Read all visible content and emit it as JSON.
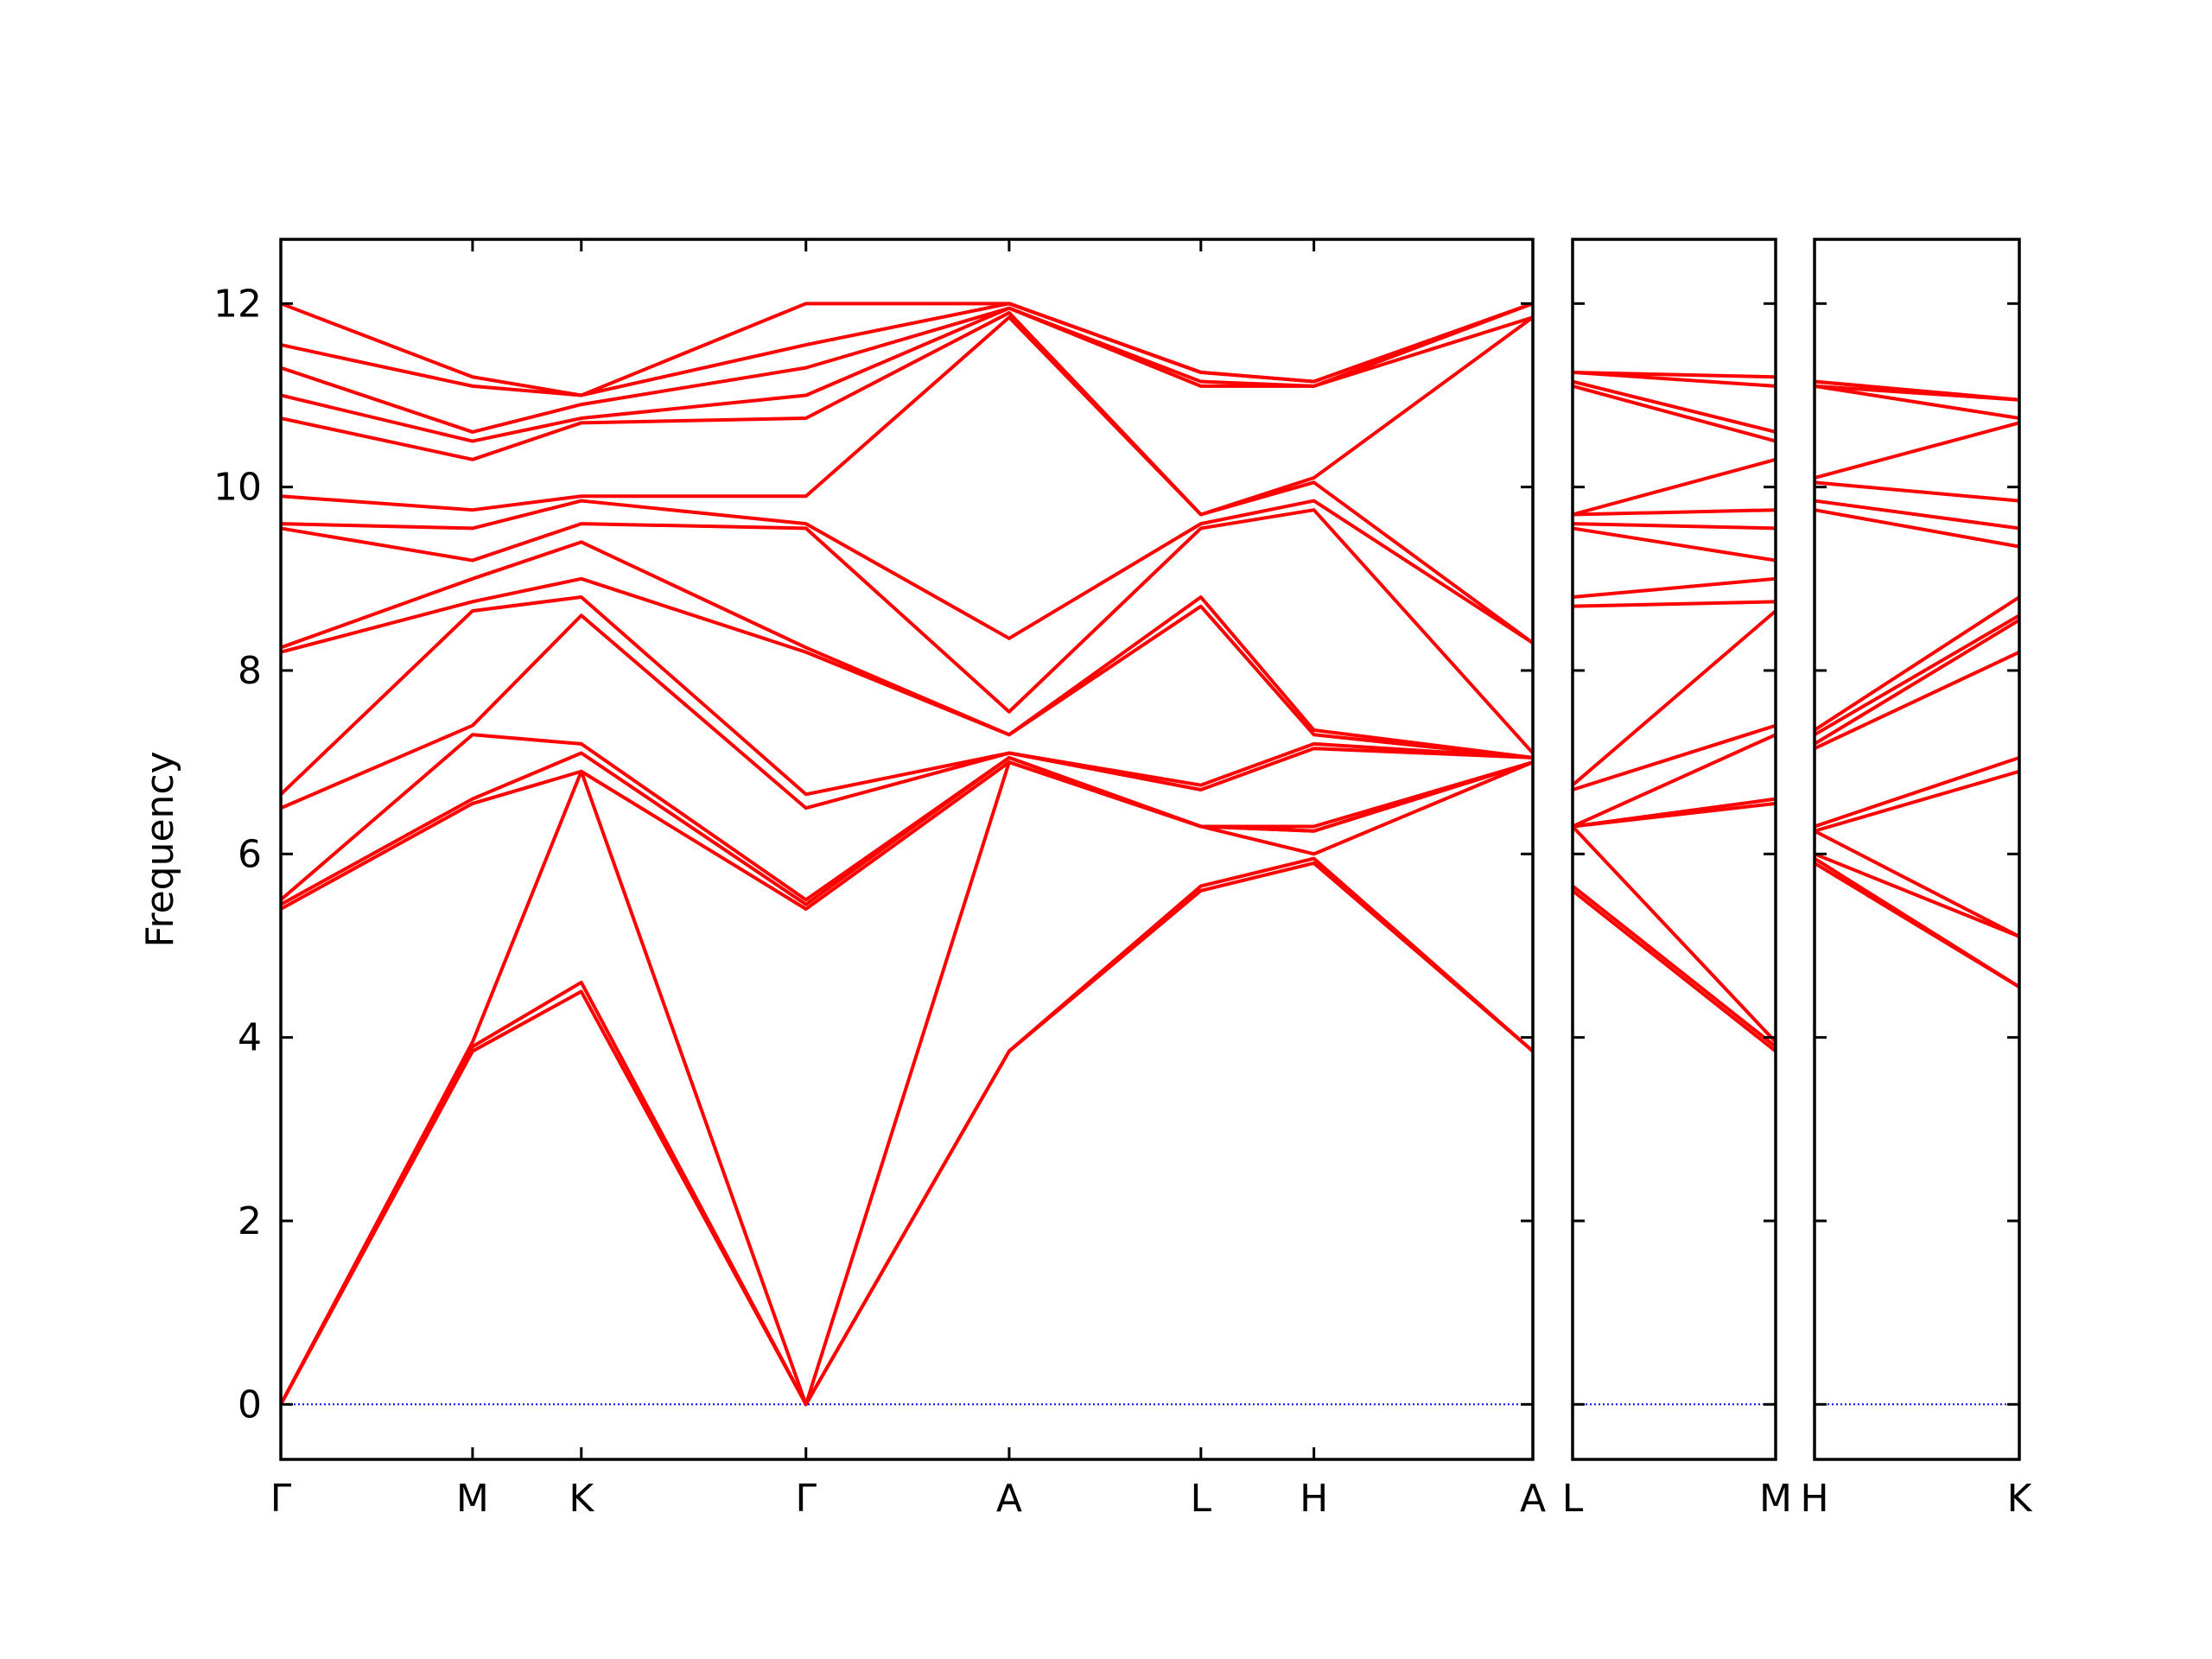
{
  "chart_data": [
    {
      "type": "line",
      "ylabel": "Frequency",
      "ylim": [
        -0.6,
        12.7
      ],
      "yticks": [
        0,
        2,
        4,
        6,
        8,
        10,
        12
      ],
      "ytick_labels": true,
      "xlim": [
        0,
        8.75
      ],
      "xticks": [
        {
          "value": 0,
          "label": "Γ"
        },
        {
          "value": 1.34,
          "label": "M"
        },
        {
          "value": 2.1,
          "label": "K"
        },
        {
          "value": 3.67,
          "label": "Γ"
        },
        {
          "value": 5.09,
          "label": "A"
        },
        {
          "value": 6.43,
          "label": "L"
        },
        {
          "value": 7.22,
          "label": "H"
        },
        {
          "value": 8.75,
          "label": "A"
        }
      ],
      "hline": 0,
      "hline_color": "#0000ff",
      "x": [
        0,
        1.34,
        2.1,
        3.67,
        5.09,
        6.43,
        7.22,
        8.75
      ],
      "series": [
        {
          "color": "#ff0000",
          "values": [
            0,
            3.85,
            4.5,
            0,
            3.85,
            5.6,
            5.9,
            3.85
          ]
        },
        {
          "color": "#ff0000",
          "values": [
            0,
            3.9,
            4.6,
            0,
            3.85,
            5.65,
            5.95,
            3.85
          ]
        },
        {
          "color": "#ff0000",
          "values": [
            0,
            3.95,
            6.9,
            0,
            7.0,
            6.3,
            6.0,
            7.0
          ]
        },
        {
          "color": "#ff0000",
          "values": [
            5.4,
            6.55,
            6.9,
            5.4,
            7.0,
            6.3,
            6.25,
            7.0
          ]
        },
        {
          "color": "#ff0000",
          "values": [
            5.45,
            6.6,
            7.1,
            5.45,
            7.05,
            6.3,
            6.25,
            7.0
          ]
        },
        {
          "color": "#ff0000",
          "values": [
            5.5,
            7.3,
            7.2,
            5.5,
            7.05,
            6.3,
            6.3,
            7.0
          ]
        },
        {
          "color": "#ff0000",
          "values": [
            6.5,
            7.4,
            8.6,
            6.5,
            7.1,
            6.7,
            7.15,
            7.05
          ]
        },
        {
          "color": "#ff0000",
          "values": [
            6.65,
            8.65,
            8.8,
            6.65,
            7.1,
            6.75,
            7.2,
            7.05
          ]
        },
        {
          "color": "#ff0000",
          "values": [
            8.2,
            8.75,
            9.0,
            8.2,
            7.3,
            8.7,
            7.3,
            7.05
          ]
        },
        {
          "color": "#ff0000",
          "values": [
            8.25,
            9.0,
            9.4,
            8.25,
            7.3,
            8.8,
            7.35,
            7.05
          ]
        },
        {
          "color": "#ff0000",
          "values": [
            9.55,
            9.2,
            9.6,
            9.55,
            7.55,
            9.55,
            9.75,
            7.1
          ]
        },
        {
          "color": "#ff0000",
          "values": [
            9.6,
            9.55,
            9.85,
            9.6,
            8.35,
            9.6,
            9.85,
            8.3
          ]
        },
        {
          "color": "#ff0000",
          "values": [
            9.9,
            9.75,
            9.9,
            9.9,
            11.85,
            9.7,
            10.05,
            8.3
          ]
        },
        {
          "color": "#ff0000",
          "values": [
            10.75,
            10.3,
            10.7,
            10.75,
            11.9,
            9.7,
            10.1,
            11.85
          ]
        },
        {
          "color": "#ff0000",
          "values": [
            11.0,
            10.5,
            10.75,
            11.0,
            11.95,
            11.1,
            11.1,
            11.85
          ]
        },
        {
          "color": "#ff0000",
          "values": [
            11.3,
            10.6,
            10.9,
            11.3,
            11.95,
            11.15,
            11.1,
            12.0
          ]
        },
        {
          "color": "#ff0000",
          "values": [
            11.55,
            11.1,
            11.0,
            11.55,
            12.0,
            11.25,
            11.15,
            12.0
          ]
        },
        {
          "color": "#ff0000",
          "values": [
            12.0,
            11.2,
            11.0,
            12.0,
            12.0,
            11.25,
            11.15,
            12.0
          ]
        }
      ]
    },
    {
      "type": "line",
      "ylim": [
        -0.6,
        12.7
      ],
      "yticks": [
        0,
        2,
        4,
        6,
        8,
        10,
        12
      ],
      "ytick_labels": false,
      "xlim": [
        0,
        1.42
      ],
      "xticks": [
        {
          "value": 0,
          "label": "L"
        },
        {
          "value": 1.42,
          "label": "M"
        }
      ],
      "hline": 0,
      "hline_color": "#0000ff",
      "x": [
        0,
        1.42
      ],
      "series": [
        {
          "color": "#ff0000",
          "values": [
            5.6,
            3.85
          ]
        },
        {
          "color": "#ff0000",
          "values": [
            5.65,
            3.9
          ]
        },
        {
          "color": "#ff0000",
          "values": [
            6.3,
            3.95
          ]
        },
        {
          "color": "#ff0000",
          "values": [
            6.3,
            6.55
          ]
        },
        {
          "color": "#ff0000",
          "values": [
            6.3,
            6.6
          ]
        },
        {
          "color": "#ff0000",
          "values": [
            6.3,
            7.3
          ]
        },
        {
          "color": "#ff0000",
          "values": [
            6.7,
            7.4
          ]
        },
        {
          "color": "#ff0000",
          "values": [
            6.75,
            8.65
          ]
        },
        {
          "color": "#ff0000",
          "values": [
            8.7,
            8.75
          ]
        },
        {
          "color": "#ff0000",
          "values": [
            8.8,
            9.0
          ]
        },
        {
          "color": "#ff0000",
          "values": [
            9.55,
            9.2
          ]
        },
        {
          "color": "#ff0000",
          "values": [
            9.6,
            9.55
          ]
        },
        {
          "color": "#ff0000",
          "values": [
            9.7,
            9.75
          ]
        },
        {
          "color": "#ff0000",
          "values": [
            9.7,
            10.3
          ]
        },
        {
          "color": "#ff0000",
          "values": [
            11.1,
            10.5
          ]
        },
        {
          "color": "#ff0000",
          "values": [
            11.15,
            10.6
          ]
        },
        {
          "color": "#ff0000",
          "values": [
            11.25,
            11.1
          ]
        },
        {
          "color": "#ff0000",
          "values": [
            11.25,
            11.2
          ]
        }
      ]
    },
    {
      "type": "line",
      "ylim": [
        -0.6,
        12.7
      ],
      "yticks": [
        0,
        2,
        4,
        6,
        8,
        10,
        12
      ],
      "ytick_labels": false,
      "xlim": [
        0,
        1.43
      ],
      "xticks": [
        {
          "value": 0,
          "label": "H"
        },
        {
          "value": 1.43,
          "label": "K"
        }
      ],
      "hline": 0,
      "hline_color": "#0000ff",
      "x": [
        0,
        1.43
      ],
      "series": [
        {
          "color": "#ff0000",
          "values": [
            5.9,
            4.55
          ]
        },
        {
          "color": "#ff0000",
          "values": [
            5.95,
            4.55
          ]
        },
        {
          "color": "#ff0000",
          "values": [
            6.0,
            5.1
          ]
        },
        {
          "color": "#ff0000",
          "values": [
            6.25,
            5.1
          ]
        },
        {
          "color": "#ff0000",
          "values": [
            6.25,
            6.9
          ]
        },
        {
          "color": "#ff0000",
          "values": [
            6.3,
            7.05
          ]
        },
        {
          "color": "#ff0000",
          "values": [
            7.15,
            8.2
          ]
        },
        {
          "color": "#ff0000",
          "values": [
            7.2,
            8.55
          ]
        },
        {
          "color": "#ff0000",
          "values": [
            7.3,
            8.6
          ]
        },
        {
          "color": "#ff0000",
          "values": [
            7.35,
            8.8
          ]
        },
        {
          "color": "#ff0000",
          "values": [
            9.75,
            9.35
          ]
        },
        {
          "color": "#ff0000",
          "values": [
            9.85,
            9.55
          ]
        },
        {
          "color": "#ff0000",
          "values": [
            10.05,
            9.85
          ]
        },
        {
          "color": "#ff0000",
          "values": [
            10.1,
            10.7
          ]
        },
        {
          "color": "#ff0000",
          "values": [
            11.1,
            10.75
          ]
        },
        {
          "color": "#ff0000",
          "values": [
            11.1,
            10.95
          ]
        },
        {
          "color": "#ff0000",
          "values": [
            11.15,
            10.95
          ]
        },
        {
          "color": "#ff0000",
          "values": [
            11.15,
            10.95
          ]
        }
      ]
    }
  ]
}
